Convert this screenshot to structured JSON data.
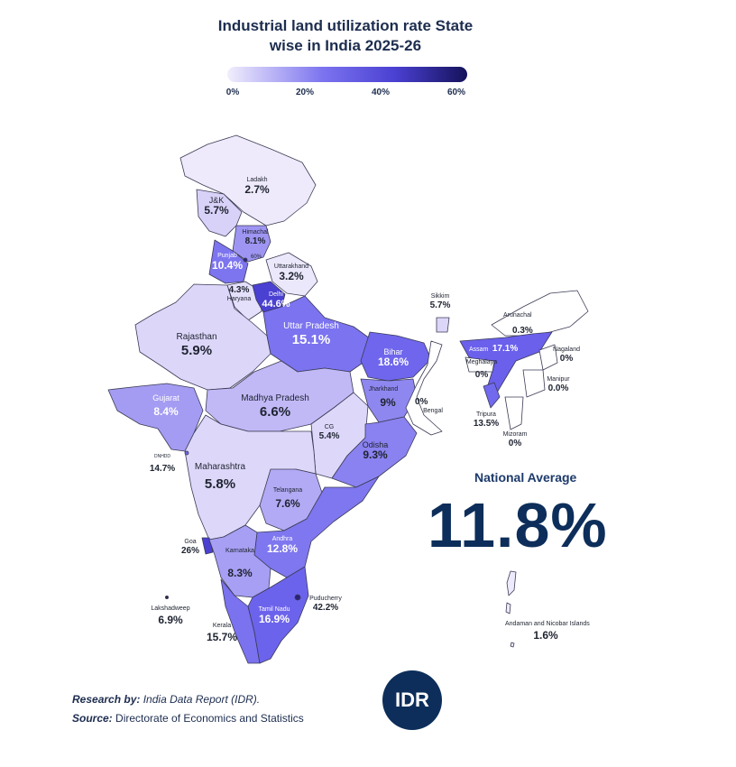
{
  "title_line1": "Industrial land utilization rate State",
  "title_line2": "wise in India 2025-26",
  "legend": {
    "ticks": [
      "0%",
      "20%",
      "40%",
      "60%"
    ],
    "min": 0,
    "max": 60,
    "colors": [
      "#f1eefc",
      "#7b73ef",
      "#4a40d2",
      "#15125a"
    ]
  },
  "regions": [
    {
      "id": "ladakh",
      "name": "Ladakh",
      "value": "2.7%"
    },
    {
      "id": "jk",
      "name": "J&K",
      "value": "5.7%"
    },
    {
      "id": "himachal",
      "name": "Himachal",
      "value": "8.1%"
    },
    {
      "id": "chandigarh",
      "name": "",
      "value": "60%"
    },
    {
      "id": "punjab",
      "name": "Punjab",
      "value": "10.4%"
    },
    {
      "id": "uttarakhand",
      "name": "Uttarakhand",
      "value": "3.2%"
    },
    {
      "id": "haryana",
      "name": "Haryana",
      "value": "4.3%"
    },
    {
      "id": "delhi",
      "name": "Delhi",
      "value": "44.6%"
    },
    {
      "id": "rajasthan",
      "name": "Rajasthan",
      "value": "5.9%"
    },
    {
      "id": "up",
      "name": "Uttar Pradesh",
      "value": "15.1%"
    },
    {
      "id": "bihar",
      "name": "Bihar",
      "value": "18.6%"
    },
    {
      "id": "sikkim",
      "name": "Sikkim",
      "value": "5.7%"
    },
    {
      "id": "arunachal",
      "name": "Arunachal",
      "value": "0.3%"
    },
    {
      "id": "assam",
      "name": "Assam",
      "value": "17.1%"
    },
    {
      "id": "meghalaya",
      "name": "Meghalaya",
      "value": "0%"
    },
    {
      "id": "nagaland",
      "name": "Nagaland",
      "value": "0%"
    },
    {
      "id": "manipur",
      "name": "Manipur",
      "value": "0.0%"
    },
    {
      "id": "tripura",
      "name": "Tripura",
      "value": "13.5%"
    },
    {
      "id": "mizoram",
      "name": "Mizoram",
      "value": "0%"
    },
    {
      "id": "bengal",
      "name": "Bengal",
      "value": "0%"
    },
    {
      "id": "jharkhand",
      "name": "Jharkhand",
      "value": "9%"
    },
    {
      "id": "gujarat",
      "name": "Gujarat",
      "value": "8.4%"
    },
    {
      "id": "mp",
      "name": "Madhya Pradesh",
      "value": "6.6%"
    },
    {
      "id": "cg",
      "name": "CG",
      "value": "5.4%"
    },
    {
      "id": "odisha",
      "name": "Odisha",
      "value": "9.3%"
    },
    {
      "id": "dnhdd",
      "name": "DNHDD",
      "value": "14.7%"
    },
    {
      "id": "maharashtra",
      "name": "Maharashtra",
      "value": "5.8%"
    },
    {
      "id": "telangana",
      "name": "Telangana",
      "value": "7.6%"
    },
    {
      "id": "goa",
      "name": "Goa",
      "value": "26%"
    },
    {
      "id": "andhra",
      "name": "Andhra",
      "value": "12.8%"
    },
    {
      "id": "karnataka",
      "name": "Karnataka",
      "value": "8.3%"
    },
    {
      "id": "lakshadweep",
      "name": "Lakshadweep",
      "value": "6.9%"
    },
    {
      "id": "kerala",
      "name": "Kerala",
      "value": "15.7%"
    },
    {
      "id": "tamilnadu",
      "name": "Tamil Nadu",
      "value": "16.9%"
    },
    {
      "id": "puducherry",
      "name": "Puducherry",
      "value": "42.2%"
    },
    {
      "id": "andaman",
      "name": "Andaman and Nicobar Islands",
      "value": "1.6%"
    }
  ],
  "national_average": {
    "label": "National Average",
    "value": "11.8%"
  },
  "credits": {
    "research_label": "Research by:",
    "research_value": "India Data Report (IDR).",
    "source_label": "Source:",
    "source_value": "Directorate of Economics and Statistics"
  },
  "logo_text": "IDR"
}
